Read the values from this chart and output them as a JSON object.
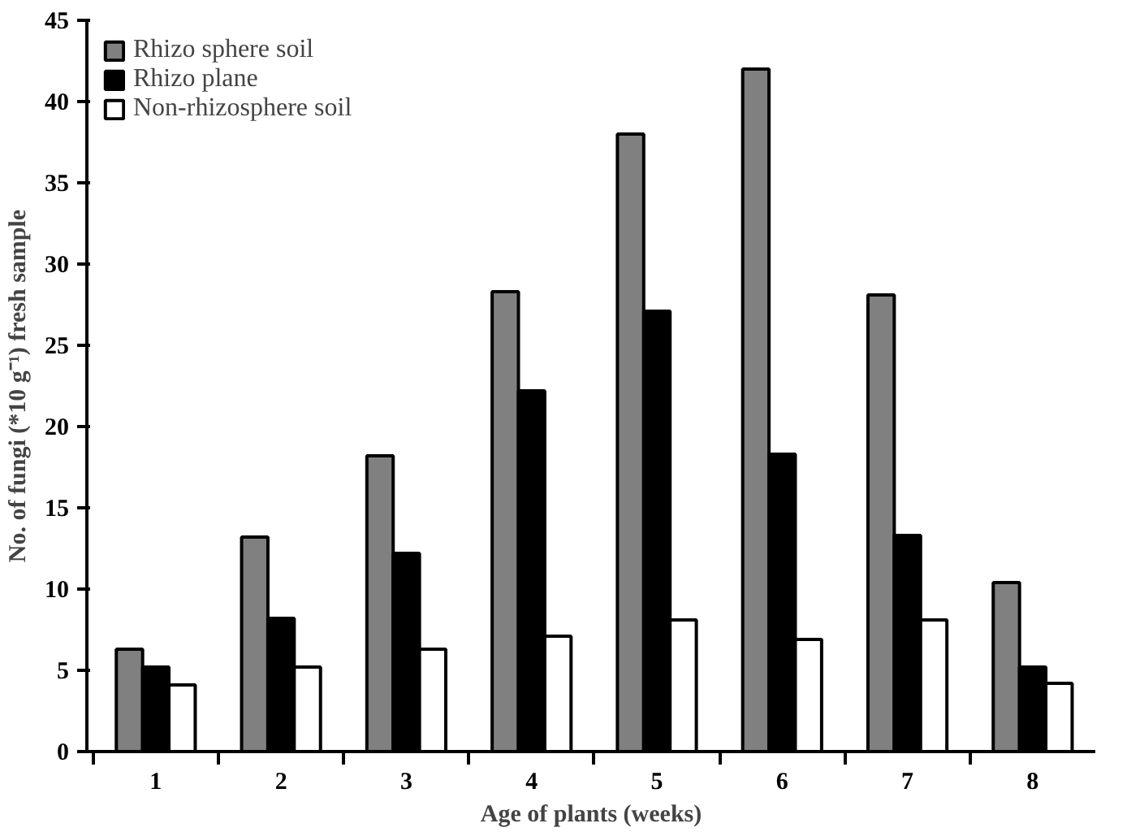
{
  "chart_data": {
    "type": "bar",
    "xlabel": "Age of plants (weeks)",
    "ylabel": "No. of fungi (*10 g⁻¹) fresh sample",
    "categories": [
      "1",
      "2",
      "3",
      "4",
      "5",
      "6",
      "7",
      "8"
    ],
    "series": [
      {
        "name": "Rhizo sphere soil",
        "color": "#808080",
        "values": [
          6.3,
          13.2,
          18.2,
          28.3,
          38,
          42,
          28.1,
          10.4
        ]
      },
      {
        "name": "Rhizo plane",
        "color": "#000000",
        "values": [
          5.2,
          8.2,
          12.2,
          22.2,
          27.1,
          18.3,
          13.3,
          5.2
        ]
      },
      {
        "name": "Non-rhizosphere soil",
        "color": "#ffffff",
        "values": [
          4.1,
          5.2,
          6.3,
          7.1,
          8.1,
          6.9,
          8.1,
          4.2
        ]
      }
    ],
    "ylim": [
      0,
      45
    ],
    "yticks": [
      0,
      5,
      10,
      15,
      20,
      25,
      30,
      35,
      40,
      45
    ],
    "grid": false,
    "legend": "top left"
  }
}
